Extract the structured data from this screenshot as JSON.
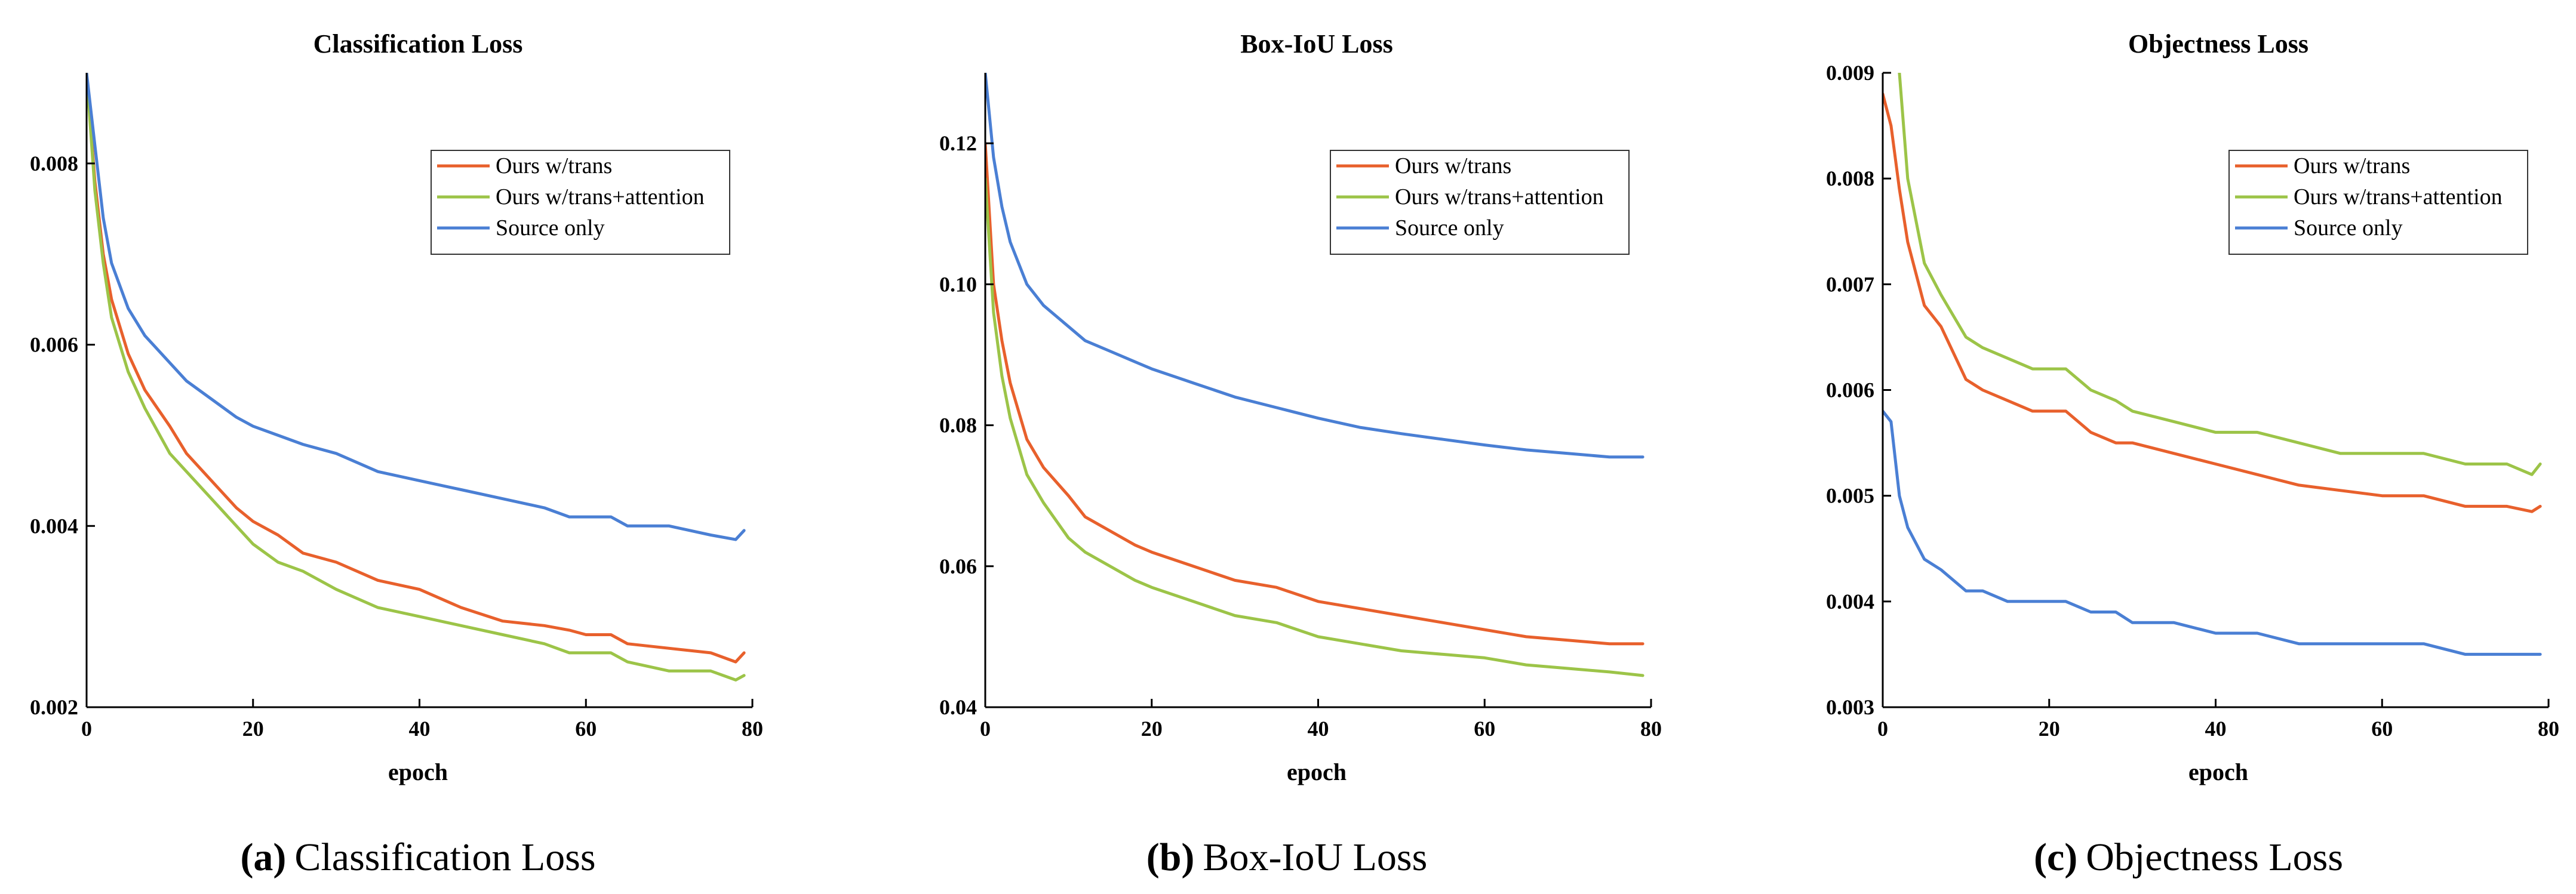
{
  "colors": {
    "trans": "#e8602c",
    "attention": "#9cc448",
    "source": "#4a7fd4"
  },
  "chart_data": [
    {
      "type": "line",
      "title": "Classification Loss",
      "xlabel": "epoch",
      "ylabel": "",
      "xlim": [
        0,
        80
      ],
      "ylim": [
        0.002,
        0.009
      ],
      "xticks": [
        "0",
        "20",
        "40",
        "60",
        "80"
      ],
      "xtick_values": [
        0,
        20,
        40,
        60,
        80
      ],
      "yticks": [
        "0.002",
        "0.004",
        "0.006",
        "0.008"
      ],
      "ytick_values": [
        0.002,
        0.004,
        0.006,
        0.008
      ],
      "legend_position": "top-right",
      "caption_label": "(a)",
      "caption_text": "Classification Loss",
      "series": [
        {
          "name": "Ours w/trans",
          "color_key": "trans",
          "x": [
            0,
            1,
            2,
            3,
            5,
            7,
            10,
            12,
            15,
            18,
            20,
            23,
            26,
            30,
            35,
            40,
            45,
            50,
            55,
            58,
            60,
            63,
            65,
            70,
            75,
            78,
            79
          ],
          "y": [
            0.009,
            0.0078,
            0.007,
            0.0065,
            0.0059,
            0.0055,
            0.0051,
            0.0048,
            0.0045,
            0.0042,
            0.00405,
            0.0039,
            0.0037,
            0.0036,
            0.0034,
            0.0033,
            0.0031,
            0.00295,
            0.0029,
            0.00285,
            0.0028,
            0.0028,
            0.0027,
            0.00265,
            0.0026,
            0.0025,
            0.0026
          ]
        },
        {
          "name": "Ours w/trans+attention",
          "color_key": "attention",
          "x": [
            0,
            1,
            2,
            3,
            5,
            7,
            10,
            12,
            15,
            18,
            20,
            23,
            26,
            30,
            35,
            40,
            45,
            50,
            55,
            58,
            60,
            63,
            65,
            70,
            75,
            78,
            79
          ],
          "y": [
            0.009,
            0.0077,
            0.0069,
            0.0063,
            0.0057,
            0.0053,
            0.0048,
            0.0046,
            0.0043,
            0.004,
            0.0038,
            0.0036,
            0.0035,
            0.0033,
            0.0031,
            0.003,
            0.0029,
            0.0028,
            0.0027,
            0.0026,
            0.0026,
            0.0026,
            0.0025,
            0.0024,
            0.0024,
            0.0023,
            0.00235
          ]
        },
        {
          "name": "Source only",
          "color_key": "source",
          "x": [
            0,
            1,
            2,
            3,
            5,
            7,
            10,
            12,
            15,
            18,
            20,
            23,
            26,
            30,
            35,
            40,
            45,
            50,
            55,
            58,
            60,
            63,
            65,
            70,
            75,
            78,
            79
          ],
          "y": [
            0.009,
            0.0082,
            0.0074,
            0.0069,
            0.0064,
            0.0061,
            0.0058,
            0.0056,
            0.0054,
            0.0052,
            0.0051,
            0.005,
            0.0049,
            0.0048,
            0.0046,
            0.0045,
            0.0044,
            0.0043,
            0.0042,
            0.0041,
            0.0041,
            0.0041,
            0.004,
            0.004,
            0.0039,
            0.00385,
            0.00395
          ]
        }
      ]
    },
    {
      "type": "line",
      "title": "Box-IoU Loss",
      "xlabel": "epoch",
      "ylabel": "",
      "xlim": [
        0,
        80
      ],
      "ylim": [
        0.04,
        0.13
      ],
      "xticks": [
        "0",
        "20",
        "40",
        "60",
        "80"
      ],
      "xtick_values": [
        0,
        20,
        40,
        60,
        80
      ],
      "yticks": [
        "0.04",
        "0.06",
        "0.08",
        "0.10",
        "0.12"
      ],
      "ytick_values": [
        0.04,
        0.06,
        0.08,
        0.1,
        0.12
      ],
      "legend_position": "top-right",
      "caption_label": "(b)",
      "caption_text": "Box-IoU Loss",
      "series": [
        {
          "name": "Ours w/trans",
          "color_key": "trans",
          "x": [
            0,
            1,
            2,
            3,
            5,
            7,
            10,
            12,
            15,
            18,
            20,
            25,
            30,
            35,
            40,
            45,
            50,
            55,
            60,
            65,
            70,
            75,
            79
          ],
          "y": [
            0.12,
            0.1,
            0.092,
            0.086,
            0.078,
            0.074,
            0.07,
            0.067,
            0.065,
            0.063,
            0.062,
            0.06,
            0.058,
            0.057,
            0.055,
            0.054,
            0.053,
            0.052,
            0.051,
            0.05,
            0.0495,
            0.049,
            0.049
          ]
        },
        {
          "name": "Ours w/trans+attention",
          "color_key": "attention",
          "x": [
            0,
            1,
            2,
            3,
            5,
            7,
            10,
            12,
            15,
            18,
            20,
            25,
            30,
            35,
            40,
            45,
            50,
            55,
            60,
            65,
            70,
            75,
            79
          ],
          "y": [
            0.115,
            0.096,
            0.087,
            0.081,
            0.073,
            0.069,
            0.064,
            0.062,
            0.06,
            0.058,
            0.057,
            0.055,
            0.053,
            0.052,
            0.05,
            0.049,
            0.048,
            0.0475,
            0.047,
            0.046,
            0.0455,
            0.045,
            0.0445
          ]
        },
        {
          "name": "Source only",
          "color_key": "source",
          "x": [
            0,
            1,
            2,
            3,
            5,
            7,
            10,
            12,
            15,
            18,
            20,
            25,
            30,
            35,
            40,
            45,
            50,
            55,
            60,
            65,
            70,
            75,
            79
          ],
          "y": [
            0.13,
            0.118,
            0.111,
            0.106,
            0.1,
            0.097,
            0.094,
            0.092,
            0.0905,
            0.089,
            0.088,
            0.086,
            0.084,
            0.0825,
            0.081,
            0.0797,
            0.0788,
            0.078,
            0.0772,
            0.0765,
            0.076,
            0.0755,
            0.0755
          ]
        }
      ]
    },
    {
      "type": "line",
      "title": "Objectness Loss",
      "xlabel": "epoch",
      "ylabel": "",
      "xlim": [
        0,
        80
      ],
      "ylim": [
        0.003,
        0.009
      ],
      "xticks": [
        "0",
        "20",
        "40",
        "60",
        "80"
      ],
      "xtick_values": [
        0,
        20,
        40,
        60,
        80
      ],
      "yticks": [
        "0.003",
        "0.004",
        "0.005",
        "0.006",
        "0.007",
        "0.008",
        "0.009"
      ],
      "ytick_values": [
        0.003,
        0.004,
        0.005,
        0.006,
        0.007,
        0.008,
        0.009
      ],
      "legend_position": "top-right",
      "caption_label": "(c)",
      "caption_text": "Objectness Loss",
      "series": [
        {
          "name": "Ours w/trans",
          "color_key": "trans",
          "x": [
            0,
            1,
            2,
            3,
            5,
            7,
            10,
            12,
            15,
            18,
            20,
            22,
            25,
            28,
            30,
            35,
            40,
            45,
            50,
            55,
            60,
            65,
            70,
            75,
            78,
            79
          ],
          "y": [
            0.0088,
            0.0085,
            0.0079,
            0.0074,
            0.0068,
            0.0066,
            0.0061,
            0.006,
            0.0059,
            0.0058,
            0.0058,
            0.0058,
            0.0056,
            0.0055,
            0.0055,
            0.0054,
            0.0053,
            0.0052,
            0.0051,
            0.00505,
            0.005,
            0.005,
            0.0049,
            0.0049,
            0.00485,
            0.0049
          ]
        },
        {
          "name": "Ours w/trans+attention",
          "color_key": "attention",
          "x": [
            2,
            3,
            5,
            7,
            10,
            12,
            15,
            18,
            20,
            22,
            25,
            28,
            30,
            35,
            40,
            45,
            50,
            55,
            60,
            65,
            70,
            75,
            78,
            79
          ],
          "y": [
            0.009,
            0.008,
            0.0072,
            0.0069,
            0.0065,
            0.0064,
            0.0063,
            0.0062,
            0.0062,
            0.0062,
            0.006,
            0.0059,
            0.0058,
            0.0057,
            0.0056,
            0.0056,
            0.0055,
            0.0054,
            0.0054,
            0.0054,
            0.0053,
            0.0053,
            0.0052,
            0.0053
          ]
        },
        {
          "name": "Source only",
          "color_key": "source",
          "x": [
            0,
            1,
            2,
            3,
            5,
            7,
            10,
            12,
            15,
            18,
            20,
            22,
            25,
            28,
            30,
            35,
            40,
            45,
            50,
            55,
            60,
            65,
            70,
            75,
            78,
            79
          ],
          "y": [
            0.0058,
            0.0057,
            0.005,
            0.0047,
            0.0044,
            0.0043,
            0.0041,
            0.0041,
            0.004,
            0.004,
            0.004,
            0.004,
            0.0039,
            0.0039,
            0.0038,
            0.0038,
            0.0037,
            0.0037,
            0.0036,
            0.0036,
            0.0036,
            0.0036,
            0.0035,
            0.0035,
            0.0035,
            0.0035
          ]
        }
      ]
    }
  ]
}
